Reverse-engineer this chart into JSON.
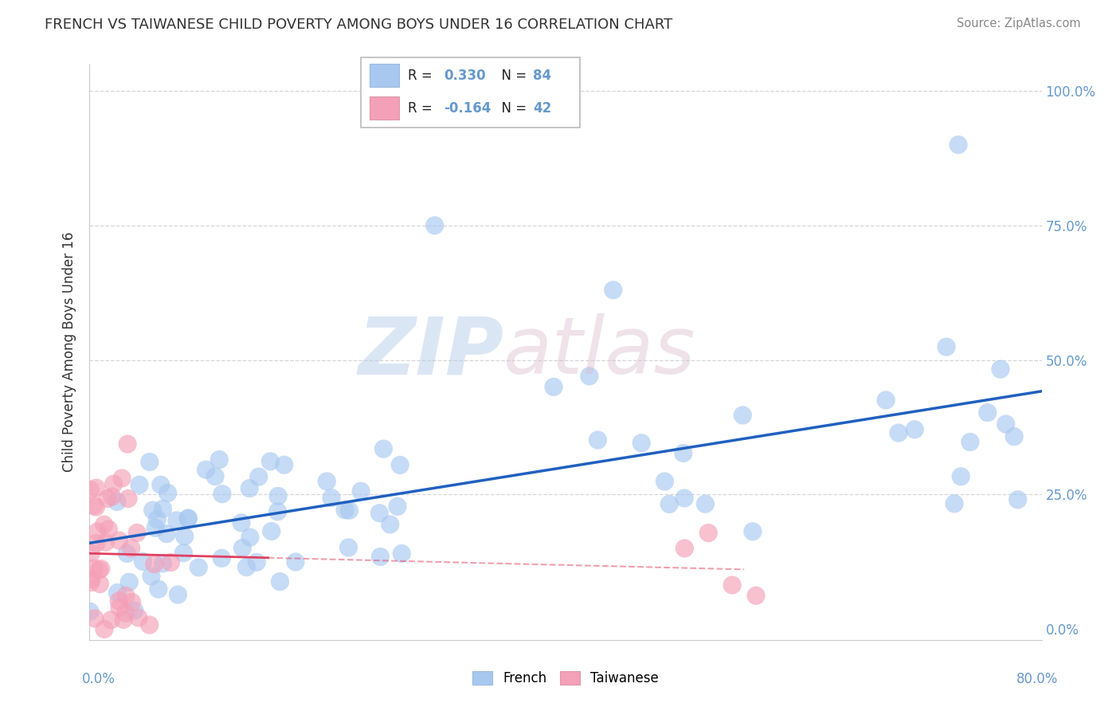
{
  "title": "FRENCH VS TAIWANESE CHILD POVERTY AMONG BOYS UNDER 16 CORRELATION CHART",
  "source": "Source: ZipAtlas.com",
  "ylabel": "Child Poverty Among Boys Under 16",
  "yticks": [
    0.0,
    0.25,
    0.5,
    0.75,
    1.0
  ],
  "ytick_labels": [
    "0.0%",
    "25.0%",
    "50.0%",
    "75.0%",
    "100.0%"
  ],
  "xlim": [
    0.0,
    0.8
  ],
  "ylim": [
    -0.02,
    1.05
  ],
  "french_R": 0.33,
  "french_N": 84,
  "taiwanese_R": -0.164,
  "taiwanese_N": 42,
  "french_color": "#A8C8F0",
  "taiwanese_color": "#F4A0B8",
  "french_line_color": "#2060C0",
  "taiwanese_line_color": "#E04060",
  "background_color": "#FFFFFF",
  "legend_box_color": "#FFFFFF",
  "legend_box_edge": "#CCCCCC",
  "grid_color": "#CCCCCC",
  "label_color": "#6699CC",
  "text_color": "#333333"
}
